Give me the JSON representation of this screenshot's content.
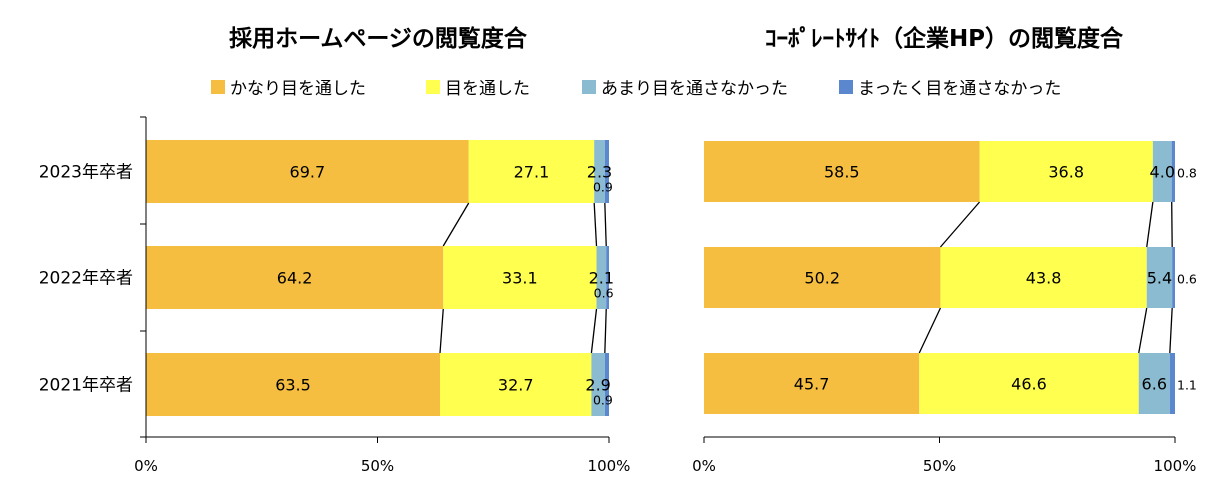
{
  "legend": [
    {
      "label": "かなり目を通した",
      "color": "#F5BE41"
    },
    {
      "label": "目を通した",
      "color": "#FFFF4F"
    },
    {
      "label": "あまり目を通さなかった",
      "color": "#8BBBD0"
    },
    {
      "label": "まったく目を通さなかった",
      "color": "#5B87CF"
    }
  ],
  "chart_data": [
    {
      "type": "bar",
      "orientation": "horizontal",
      "stacked": "percent",
      "title": "採用ホームページの閲覧度合",
      "categories": [
        "2023年卒者",
        "2022年卒者",
        "2021年卒者"
      ],
      "series": [
        {
          "name": "かなり目を通した",
          "values": [
            69.7,
            64.2,
            63.5
          ]
        },
        {
          "name": "目を通した",
          "values": [
            27.1,
            33.1,
            32.7
          ]
        },
        {
          "name": "あまり目を通さなかった",
          "values": [
            2.3,
            2.1,
            2.9
          ]
        },
        {
          "name": "まったく目を通さなかった",
          "values": [
            0.9,
            0.6,
            0.9
          ]
        }
      ],
      "value_labels": [
        [
          "69.7",
          "27.1",
          "2.3",
          "0.9"
        ],
        [
          "64.2",
          "33.1",
          "2.1",
          "0.6"
        ],
        [
          "63.5",
          "32.7",
          "2.9",
          "0.9"
        ]
      ],
      "xlim": [
        0,
        100
      ],
      "xticks": [
        "0%",
        "50%",
        "100%"
      ],
      "grid": false,
      "legend_position": "top"
    },
    {
      "type": "bar",
      "orientation": "horizontal",
      "stacked": "percent",
      "title": "ｺｰﾎﾟﾚｰﾄｻｲﾄ（企業HP）の閲覧度合",
      "categories": [
        "2023年卒者",
        "2022年卒者",
        "2021年卒者"
      ],
      "series": [
        {
          "name": "かなり目を通した",
          "values": [
            58.5,
            50.2,
            45.7
          ]
        },
        {
          "name": "目を通した",
          "values": [
            36.8,
            43.8,
            46.6
          ]
        },
        {
          "name": "あまり目を通さなかった",
          "values": [
            4.0,
            5.4,
            6.6
          ]
        },
        {
          "name": "まったく目を通さなかった",
          "values": [
            0.8,
            0.6,
            1.1
          ]
        }
      ],
      "value_labels": [
        [
          "58.5",
          "36.8",
          "4.0",
          "0.8"
        ],
        [
          "50.2",
          "43.8",
          "5.4",
          "0.6"
        ],
        [
          "45.7",
          "46.6",
          "6.6",
          "1.1"
        ]
      ],
      "xlim": [
        0,
        100
      ],
      "xticks": [
        "0%",
        "50%",
        "100%"
      ],
      "grid": false,
      "legend_position": "top"
    }
  ]
}
